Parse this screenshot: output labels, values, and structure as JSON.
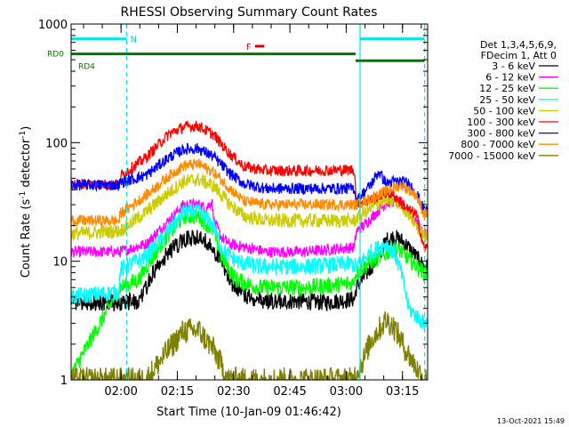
{
  "chart_data": {
    "type": "line",
    "title": "RHESSI Observing Summary Count Rates",
    "xlabel": "Start Time (10-Jan-09 01:46:42)",
    "ylabel_prefix": "Count Rate (s",
    "ylabel_sup1": "-1",
    "ylabel_mid": " detector",
    "ylabel_sup2": "-1",
    "ylabel_suffix": ")",
    "y_scale": "log",
    "ylim": [
      1,
      1000
    ],
    "x_unit": "minutes since 01:46:42",
    "xlim": [
      0,
      95
    ],
    "x_ticks": [
      {
        "value": 13.3,
        "label": "02:00"
      },
      {
        "value": 28.3,
        "label": "02:15"
      },
      {
        "value": 43.3,
        "label": "02:30"
      },
      {
        "value": 58.3,
        "label": "02:45"
      },
      {
        "value": 73.3,
        "label": "03:00"
      },
      {
        "value": 88.3,
        "label": "03:15"
      }
    ],
    "y_ticks": [
      {
        "value": 1,
        "label": "1"
      },
      {
        "value": 10,
        "label": "10"
      },
      {
        "value": 100,
        "label": "100"
      },
      {
        "value": 1000,
        "label": "1000"
      }
    ],
    "legend_header": [
      "Det 1,3,4,5,6,9,",
      "FDecim 1, Att 0"
    ],
    "legend_position": "right",
    "footer_date": "13-Oct-2021 15:49",
    "series": [
      {
        "name": "3 - 6 keV",
        "color": "#000000",
        "jitter": 0.6,
        "points": [
          [
            13,
            4.5
          ],
          [
            18,
            4.6
          ],
          [
            22,
            8
          ],
          [
            26,
            12
          ],
          [
            30,
            15
          ],
          [
            33,
            16
          ],
          [
            37,
            14
          ],
          [
            40,
            10
          ],
          [
            43,
            6.5
          ],
          [
            47,
            5
          ],
          [
            52,
            4.6
          ],
          [
            60,
            4.6
          ],
          [
            68,
            4.5
          ],
          [
            75.5,
            4.8
          ],
          [
            76,
            6
          ],
          [
            80,
            9
          ],
          [
            82,
            11
          ],
          [
            84,
            15
          ],
          [
            86,
            16
          ],
          [
            88,
            15
          ],
          [
            90,
            13
          ],
          [
            94,
            9
          ]
        ]
      },
      {
        "name": "6 - 12 keV",
        "color": "#ff00ff",
        "jitter": 0.4,
        "points": [
          [
            0,
            12
          ],
          [
            12.9,
            12
          ],
          [
            13,
            12
          ],
          [
            20,
            14
          ],
          [
            26,
            22
          ],
          [
            30,
            30
          ],
          [
            34,
            30
          ],
          [
            36,
            28
          ],
          [
            37.5,
            32
          ],
          [
            38,
            22
          ],
          [
            40,
            16
          ],
          [
            42,
            14
          ],
          [
            47,
            13
          ],
          [
            52,
            12
          ],
          [
            62,
            12
          ],
          [
            74,
            13
          ],
          [
            75.5,
            13
          ],
          [
            76,
            18
          ],
          [
            78,
            20
          ],
          [
            81,
            25
          ],
          [
            84,
            31
          ],
          [
            86,
            32
          ],
          [
            88,
            31
          ],
          [
            90,
            27
          ],
          [
            94,
            17
          ]
        ]
      },
      {
        "name": "12 - 25 keV",
        "color": "#00ff00",
        "jitter": 0.6,
        "points": [
          [
            0,
            1.1
          ],
          [
            13,
            6
          ],
          [
            18,
            7
          ],
          [
            24,
            14
          ],
          [
            30,
            24
          ],
          [
            34,
            24
          ],
          [
            38,
            18
          ],
          [
            40,
            11
          ],
          [
            44,
            7
          ],
          [
            50,
            6
          ],
          [
            62,
            6
          ],
          [
            75,
            6.5
          ],
          [
            76,
            8
          ],
          [
            80,
            10
          ],
          [
            83,
            11
          ],
          [
            86,
            13
          ],
          [
            88,
            12
          ],
          [
            94,
            8
          ]
        ]
      },
      {
        "name": "25 - 50 keV",
        "color": "#00ffff",
        "jitter": 0.6,
        "points": [
          [
            0,
            5
          ],
          [
            12.9,
            5.5
          ],
          [
            13,
            8.5
          ],
          [
            20,
            11
          ],
          [
            26,
            18
          ],
          [
            30,
            26
          ],
          [
            34,
            26
          ],
          [
            38,
            20
          ],
          [
            40,
            13
          ],
          [
            44,
            10
          ],
          [
            50,
            9
          ],
          [
            62,
            9
          ],
          [
            75,
            9.5
          ],
          [
            76,
            9
          ],
          [
            80,
            12
          ],
          [
            84,
            14
          ],
          [
            86,
            12
          ],
          [
            88,
            8
          ],
          [
            90,
            4
          ],
          [
            94,
            3
          ]
        ]
      },
      {
        "name": "50 - 100 keV",
        "color": "#cccc00",
        "jitter": 0.5,
        "points": [
          [
            0,
            17
          ],
          [
            13,
            18
          ],
          [
            20,
            26
          ],
          [
            26,
            38
          ],
          [
            30,
            47
          ],
          [
            34,
            49
          ],
          [
            38,
            43
          ],
          [
            42,
            31
          ],
          [
            46,
            24
          ],
          [
            52,
            22
          ],
          [
            62,
            22
          ],
          [
            75.5,
            22
          ],
          [
            76,
            23
          ],
          [
            80,
            28
          ],
          [
            83,
            32
          ],
          [
            86,
            32
          ],
          [
            88,
            30
          ],
          [
            90,
            25
          ],
          [
            94,
            16
          ]
        ]
      },
      {
        "name": "100 - 300 keV",
        "color": "#ff0000",
        "jitter": 0.4,
        "points": [
          [
            0,
            45
          ],
          [
            12.9,
            44
          ],
          [
            13,
            52
          ],
          [
            20,
            75
          ],
          [
            26,
            118
          ],
          [
            30,
            136
          ],
          [
            34,
            138
          ],
          [
            38,
            116
          ],
          [
            42,
            82
          ],
          [
            46,
            63
          ],
          [
            52,
            58
          ],
          [
            62,
            58
          ],
          [
            75.5,
            59
          ],
          [
            76,
            31
          ],
          [
            80,
            33
          ],
          [
            84,
            38
          ],
          [
            86,
            36
          ],
          [
            88,
            31
          ],
          [
            90,
            27
          ],
          [
            92,
            25
          ],
          [
            94,
            13
          ]
        ]
      },
      {
        "name": "300 - 800 keV",
        "color": "#0000ff",
        "jitter": 0.4,
        "points": [
          [
            0,
            44
          ],
          [
            12.9,
            44
          ],
          [
            13,
            46
          ],
          [
            20,
            53
          ],
          [
            26,
            75
          ],
          [
            30,
            88
          ],
          [
            34,
            89
          ],
          [
            38,
            76
          ],
          [
            42,
            56
          ],
          [
            46,
            45
          ],
          [
            52,
            41
          ],
          [
            62,
            41
          ],
          [
            75.5,
            41
          ],
          [
            76,
            32
          ],
          [
            80,
            45
          ],
          [
            82,
            57
          ],
          [
            84,
            45
          ],
          [
            86,
            47
          ],
          [
            88,
            47
          ],
          [
            90,
            45
          ],
          [
            92,
            38
          ],
          [
            94,
            27
          ]
        ]
      },
      {
        "name": "800 - 7000 keV",
        "color": "#ff8c00",
        "jitter": 0.4,
        "points": [
          [
            0,
            22
          ],
          [
            12.9,
            22
          ],
          [
            13,
            25
          ],
          [
            20,
            36
          ],
          [
            26,
            52
          ],
          [
            30,
            64
          ],
          [
            34,
            66
          ],
          [
            38,
            56
          ],
          [
            42,
            42
          ],
          [
            46,
            32
          ],
          [
            52,
            30
          ],
          [
            62,
            30
          ],
          [
            75.5,
            30
          ],
          [
            76,
            30
          ],
          [
            80,
            34
          ],
          [
            84,
            39
          ],
          [
            86,
            42
          ],
          [
            88,
            44
          ],
          [
            90,
            40
          ],
          [
            92,
            36
          ],
          [
            94,
            25
          ]
        ]
      },
      {
        "name": "7000 - 15000 keV",
        "color": "#808000",
        "jitter": 0.9,
        "points": [
          [
            0,
            1
          ],
          [
            20,
            1
          ],
          [
            26,
            1.8
          ],
          [
            30,
            2.6
          ],
          [
            34,
            2.6
          ],
          [
            38,
            1.8
          ],
          [
            42,
            1
          ],
          [
            46,
            1
          ],
          [
            75,
            1
          ],
          [
            78,
            1.5
          ],
          [
            80,
            2.2
          ],
          [
            84,
            3.2
          ],
          [
            86,
            2.8
          ],
          [
            90,
            1.6
          ],
          [
            94,
            1
          ]
        ]
      }
    ],
    "annotations": {
      "rd0_label": "RD0",
      "rd4_label": "RD4",
      "night_label": "N",
      "flare_label": "F",
      "night_intervals": [
        [
          0,
          14.8
        ],
        [
          77,
          94.2
        ]
      ],
      "night_level": 750,
      "rd0_interval": [
        0,
        75.8
      ],
      "rd0_level": 560,
      "rd4_interval": [
        75.8,
        94.2
      ],
      "rd4_level": 490,
      "flare_interval": [
        49,
        51.5
      ],
      "flare_level": 650,
      "dashed_x": [
        14.8,
        94.2
      ],
      "solid_x": [
        77
      ]
    }
  }
}
